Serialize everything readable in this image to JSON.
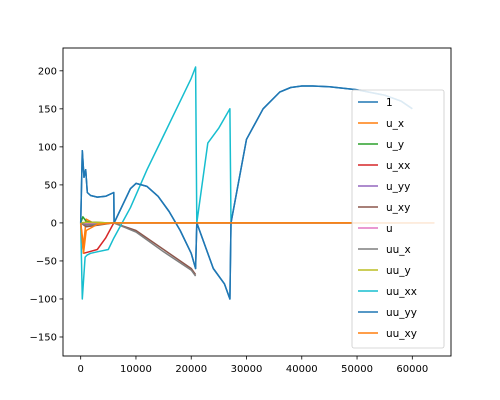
{
  "chart_data": {
    "type": "line",
    "title": "",
    "xlabel": "",
    "ylabel": "",
    "xlim": [
      -3200,
      67000
    ],
    "ylim": [
      -175,
      230
    ],
    "xticks": [
      0,
      10000,
      20000,
      30000,
      40000,
      50000,
      60000
    ],
    "xtick_labels": [
      "0",
      "10000",
      "20000",
      "30000",
      "40000",
      "50000",
      "60000"
    ],
    "yticks": [
      -150,
      -100,
      -50,
      0,
      50,
      100,
      150,
      200
    ],
    "ytick_labels": [
      "−150",
      "−100",
      "−50",
      "0",
      "50",
      "100",
      "150",
      "200"
    ],
    "grid": false,
    "legend_position": "right",
    "series": [
      {
        "name": "1",
        "color": "#1f77b4",
        "x": [
          0,
          300,
          600,
          900,
          1200,
          1800,
          3000,
          4500,
          6000,
          6050,
          9000,
          10000,
          12000,
          14000,
          16000,
          18000,
          20000,
          20800,
          21000,
          24000,
          26000,
          27000,
          27200,
          30000,
          33000,
          36000,
          38000,
          40000,
          42000,
          45000,
          50000,
          55000,
          58000,
          60000
        ],
        "values": [
          0,
          95,
          60,
          70,
          40,
          36,
          34,
          35,
          40,
          0,
          45,
          52,
          48,
          35,
          15,
          -10,
          -40,
          -60,
          0,
          -60,
          -80,
          -100,
          0,
          110,
          150,
          172,
          178,
          180,
          180,
          179,
          175,
          168,
          160,
          150
        ]
      },
      {
        "name": "u_x",
        "color": "#ff7f0e",
        "x": [
          0,
          500,
          1000,
          2000,
          5000,
          10000,
          20000,
          40000,
          60000
        ],
        "values": [
          0,
          -30,
          5,
          1,
          0,
          0,
          0,
          0,
          0
        ]
      },
      {
        "name": "u_y",
        "color": "#2ca02c",
        "x": [
          0,
          400,
          1000,
          2000,
          5000,
          20000,
          60000
        ],
        "values": [
          0,
          8,
          2,
          1,
          0,
          0,
          0
        ]
      },
      {
        "name": "u_xx",
        "color": "#d62728",
        "x": [
          0,
          500,
          1500,
          3000,
          4500,
          6000,
          10000,
          30000,
          64000
        ],
        "values": [
          0,
          -40,
          -38,
          -35,
          -20,
          0,
          0,
          0,
          0
        ]
      },
      {
        "name": "u_yy",
        "color": "#9467bd",
        "x": [
          0,
          1000,
          3000,
          6000,
          20000,
          64000
        ],
        "values": [
          0,
          -2,
          -1,
          0,
          0,
          0
        ]
      },
      {
        "name": "u_xy",
        "color": "#8c564b",
        "x": [
          0,
          1000,
          3000,
          6000,
          10000,
          15000,
          20000,
          20800
        ],
        "values": [
          0,
          -5,
          -3,
          0,
          -10,
          -35,
          -60,
          -68
        ]
      },
      {
        "name": "u",
        "color": "#e377c2",
        "x": [
          0,
          1000,
          5000,
          20000,
          64000
        ],
        "values": [
          0,
          0,
          0,
          0,
          0
        ]
      },
      {
        "name": "uu_x",
        "color": "#7f7f7f",
        "x": [
          0,
          1000,
          3000,
          6000,
          10000,
          15000,
          20000,
          20800
        ],
        "values": [
          0,
          -3,
          -2,
          0,
          -12,
          -38,
          -62,
          -70
        ]
      },
      {
        "name": "uu_y",
        "color": "#bcbd22",
        "x": [
          0,
          1000,
          5000,
          20000,
          64000
        ],
        "values": [
          0,
          1,
          0,
          0,
          0
        ]
      },
      {
        "name": "uu_xx",
        "color": "#17becf",
        "x": [
          0,
          300,
          800,
          1200,
          1800,
          3000,
          5000,
          6000,
          9000,
          12000,
          15000,
          18000,
          20000,
          20800,
          21000,
          23000,
          25000,
          27000,
          27200
        ],
        "values": [
          0,
          -100,
          -45,
          -42,
          -40,
          -38,
          -35,
          -20,
          20,
          70,
          115,
          160,
          190,
          205,
          0,
          105,
          125,
          150,
          0
        ]
      },
      {
        "name": "uu_yy",
        "color": "#1f77b4",
        "x": [
          0,
          300,
          600,
          900,
          1200,
          1800,
          3000,
          4500,
          6000,
          6050,
          9000,
          10000,
          12000,
          14000,
          16000,
          18000,
          20000,
          20800,
          21000,
          24000,
          26000,
          27000,
          27200,
          30000,
          33000,
          36000,
          38000,
          40000,
          42000,
          45000,
          50000,
          55000,
          58000,
          60000
        ],
        "values": [
          0,
          95,
          60,
          70,
          40,
          36,
          34,
          35,
          40,
          0,
          45,
          52,
          48,
          35,
          15,
          -10,
          -40,
          -60,
          0,
          -60,
          -80,
          -100,
          0,
          110,
          150,
          172,
          178,
          180,
          180,
          179,
          175,
          168,
          160,
          150
        ]
      },
      {
        "name": "uu_xy",
        "color": "#ff7f0e",
        "x": [
          0,
          500,
          1000,
          3000,
          6000,
          10000,
          20000,
          40000,
          64000
        ],
        "values": [
          0,
          -40,
          -10,
          -2,
          0,
          0,
          0,
          0,
          0
        ]
      }
    ]
  }
}
